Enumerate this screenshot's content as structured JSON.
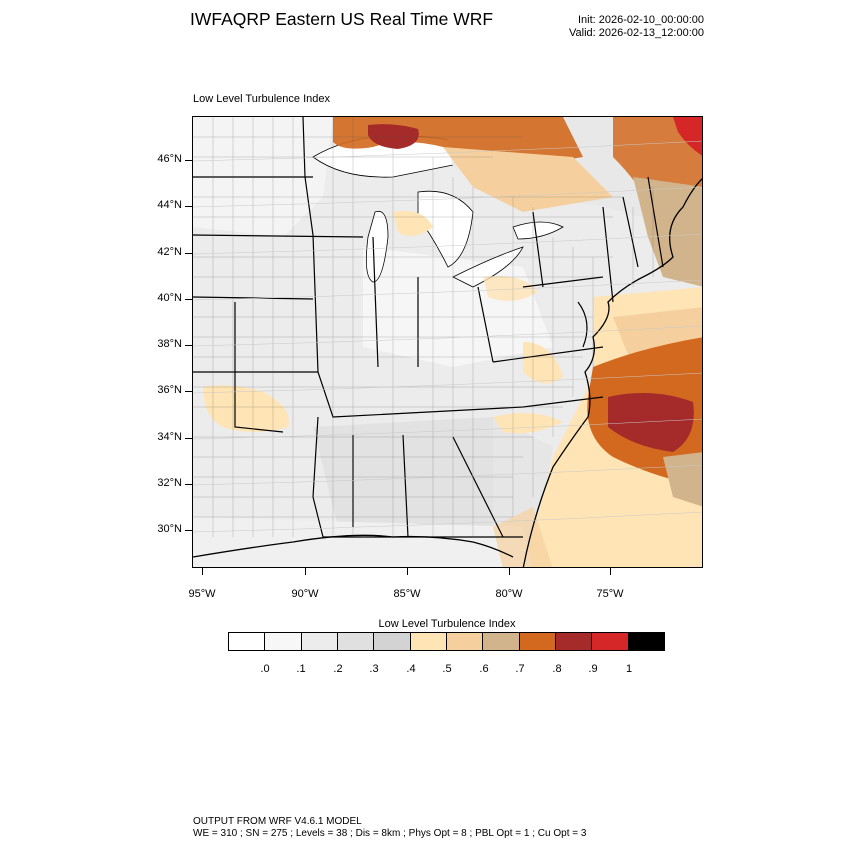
{
  "header": {
    "title": "IWFAQRP Eastern US Real Time WRF",
    "init": "Init: 2026-02-10_00:00:00",
    "valid": "Valid: 2026-02-13_12:00:00"
  },
  "panel": {
    "title": "Low Level Turbulence Index"
  },
  "axes": {
    "lat_labels": [
      "46°N",
      "44°N",
      "42°N",
      "40°N",
      "38°N",
      "36°N",
      "34°N",
      "32°N",
      "30°N"
    ],
    "lon_labels": [
      "95°W",
      "90°W",
      "85°W",
      "80°W",
      "75°W"
    ]
  },
  "colorbar": {
    "title": "Low Level Turbulence Index",
    "labels": [
      ".0",
      ".1",
      ".2",
      ".3",
      ".4",
      ".5",
      ".6",
      ".7",
      ".8",
      ".9",
      "1"
    ],
    "colors": [
      "#ffffff",
      "#f7f7f7",
      "#ececec",
      "#e0e0e0",
      "#d3d3d3",
      "#ffe4b5",
      "#f5d09e",
      "#d2b48c",
      "#d2691e",
      "#a52a2a",
      "#d62728",
      "#000000"
    ]
  },
  "footer": {
    "line1": "OUTPUT FROM WRF V4.6.1 MODEL",
    "line2": "WE = 310 ; SN = 275 ; Levels = 38 ; Dis = 8km ; Phys Opt = 8 ; PBL Opt = 1 ; Cu Opt = 3"
  }
}
